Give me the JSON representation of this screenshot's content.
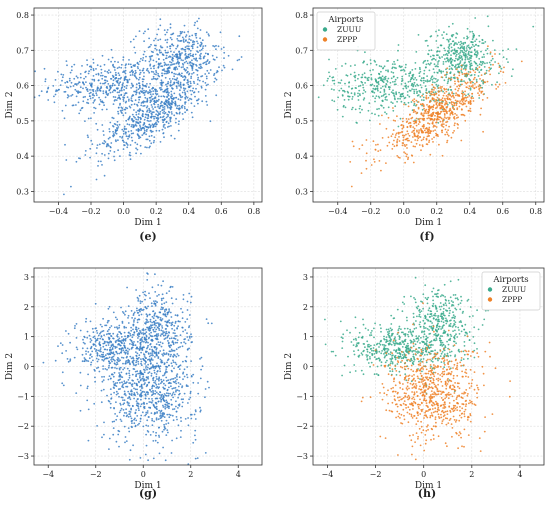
{
  "figure": {
    "background": "#ffffff",
    "grid_color": "#dddddd",
    "point_color_single": "#3b7fc4"
  },
  "chart_data": [
    {
      "type": "scatter",
      "caption": "(e)",
      "xlabel": "Dim 1",
      "ylabel": "Dim 2",
      "xlim": [
        -0.55,
        0.85
      ],
      "ylim": [
        0.27,
        0.82
      ],
      "xticks": [
        -0.4,
        -0.2,
        0.0,
        0.2,
        0.4,
        0.6,
        0.8
      ],
      "yticks": [
        0.3,
        0.4,
        0.5,
        0.6,
        0.7,
        0.8
      ],
      "xtick_labels": [
        "−0.4",
        "−0.2",
        "0.0",
        "0.2",
        "0.4",
        "0.6",
        "0.8"
      ],
      "ytick_labels": [
        "0.3",
        "0.4",
        "0.5",
        "0.6",
        "0.7",
        "0.8"
      ],
      "grid": true,
      "legend": null,
      "series": [
        {
          "color": "#3b7fc4",
          "clusters": [
            {
              "cx": -0.05,
              "cy": 0.6,
              "sx": 0.2,
              "sy": 0.04,
              "n": 520
            },
            {
              "cx": 0.35,
              "cy": 0.68,
              "sx": 0.12,
              "sy": 0.045,
              "n": 420
            },
            {
              "cx": 0.18,
              "cy": 0.52,
              "sx": 0.17,
              "sy": 0.06,
              "n": 620,
              "rho": 0.75
            }
          ]
        }
      ]
    },
    {
      "type": "scatter",
      "caption": "(f)",
      "xlabel": "Dim 1",
      "ylabel": "Dim 2",
      "xlim": [
        -0.55,
        0.85
      ],
      "ylim": [
        0.27,
        0.82
      ],
      "xticks": [
        -0.4,
        -0.2,
        0.0,
        0.2,
        0.4,
        0.6,
        0.8
      ],
      "yticks": [
        0.3,
        0.4,
        0.5,
        0.6,
        0.7,
        0.8
      ],
      "xtick_labels": [
        "−0.4",
        "−0.2",
        "0.0",
        "0.2",
        "0.4",
        "0.6",
        "0.8"
      ],
      "ytick_labels": [
        "0.3",
        "0.4",
        "0.5",
        "0.6",
        "0.7",
        "0.8"
      ],
      "grid": true,
      "legend": {
        "title": "Airports",
        "placement": "top-left"
      },
      "series": [
        {
          "name": "ZUUU",
          "color": "#3aaa8c",
          "clusters": [
            {
              "cx": -0.05,
              "cy": 0.6,
              "sx": 0.2,
              "sy": 0.04,
              "n": 480
            },
            {
              "cx": 0.35,
              "cy": 0.68,
              "sx": 0.12,
              "sy": 0.04,
              "n": 400
            }
          ]
        },
        {
          "name": "ZPPP",
          "color": "#ee8128",
          "clusters": [
            {
              "cx": 0.2,
              "cy": 0.52,
              "sx": 0.17,
              "sy": 0.06,
              "n": 700,
              "rho": 0.78
            }
          ]
        }
      ]
    },
    {
      "type": "scatter",
      "caption": "(g)",
      "xlabel": "Dim 1",
      "ylabel": "Dim 2",
      "xlim": [
        -4.6,
        5.0
      ],
      "ylim": [
        -3.3,
        3.3
      ],
      "xticks": [
        -4,
        -2,
        0,
        2,
        4
      ],
      "yticks": [
        -3,
        -2,
        -1,
        0,
        1,
        2,
        3
      ],
      "xtick_labels": [
        "−4",
        "−2",
        "0",
        "2",
        "4"
      ],
      "ytick_labels": [
        "−3",
        "−2",
        "−1",
        "0",
        "1",
        "2",
        "3"
      ],
      "grid": true,
      "legend": null,
      "series": [
        {
          "color": "#3b7fc4",
          "clusters": [
            {
              "cx": -1.2,
              "cy": 0.6,
              "sx": 0.9,
              "sy": 0.5,
              "n": 450
            },
            {
              "cx": 0.6,
              "cy": 1.2,
              "sx": 0.7,
              "sy": 0.7,
              "n": 450
            },
            {
              "cx": 0.3,
              "cy": -0.9,
              "sx": 1.0,
              "sy": 0.8,
              "n": 700
            }
          ]
        }
      ]
    },
    {
      "type": "scatter",
      "caption": "(h)",
      "xlabel": "Dim 1",
      "ylabel": "Dim 2",
      "xlim": [
        -4.6,
        5.0
      ],
      "ylim": [
        -3.3,
        3.3
      ],
      "xticks": [
        -4,
        -2,
        0,
        2,
        4
      ],
      "yticks": [
        -3,
        -2,
        -1,
        0,
        1,
        2,
        3
      ],
      "xtick_labels": [
        "−4",
        "−2",
        "0",
        "2",
        "4"
      ],
      "ytick_labels": [
        "−3",
        "−2",
        "−1",
        "0",
        "1",
        "2",
        "3"
      ],
      "grid": true,
      "legend": {
        "title": "Airports",
        "placement": "top-right"
      },
      "series": [
        {
          "name": "ZUUU",
          "color": "#3aaa8c",
          "clusters": [
            {
              "cx": -1.2,
              "cy": 0.6,
              "sx": 0.9,
              "sy": 0.45,
              "n": 420
            },
            {
              "cx": 0.6,
              "cy": 1.4,
              "sx": 0.7,
              "sy": 0.65,
              "n": 420
            }
          ]
        },
        {
          "name": "ZPPP",
          "color": "#ee8128",
          "clusters": [
            {
              "cx": 0.4,
              "cy": -0.9,
              "sx": 1.0,
              "sy": 0.8,
              "n": 720
            }
          ]
        }
      ]
    }
  ]
}
